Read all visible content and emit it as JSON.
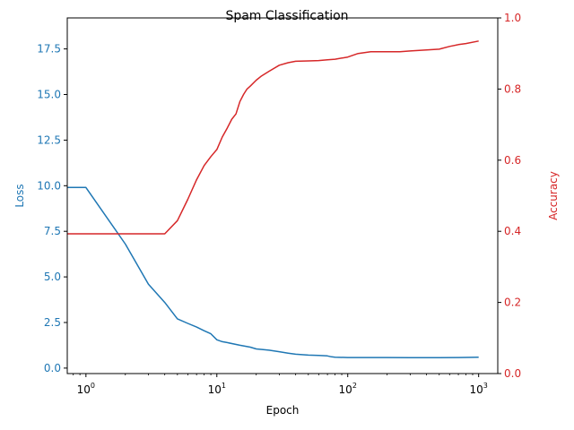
{
  "chart_data": {
    "type": "line",
    "title": "Spam Classification",
    "xlabel": "Epoch",
    "ylabel_left": "Loss",
    "ylabel_right": "Accuracy",
    "x_scale": "log",
    "xlim": [
      0.72,
      1400
    ],
    "x_ticks": [
      1,
      10,
      100,
      1000
    ],
    "x_tick_labels": [
      {
        "base": "10",
        "exp": "0"
      },
      {
        "base": "10",
        "exp": "1"
      },
      {
        "base": "10",
        "exp": "2"
      },
      {
        "base": "10",
        "exp": "3"
      }
    ],
    "ylim_left": [
      -0.3,
      19.2
    ],
    "y_ticks_left": [
      0.0,
      2.5,
      5.0,
      7.5,
      10.0,
      12.5,
      15.0,
      17.5
    ],
    "y_tick_labels_left": [
      "0.0",
      "2.5",
      "5.0",
      "7.5",
      "10.0",
      "12.5",
      "15.0",
      "17.5"
    ],
    "ylim_right": [
      0.0,
      1.0
    ],
    "y_ticks_right": [
      0.0,
      0.2,
      0.4,
      0.6,
      0.8,
      1.0
    ],
    "y_tick_labels_right": [
      "0.0",
      "0.2",
      "0.4",
      "0.6",
      "0.8",
      "1.0"
    ],
    "grid": false,
    "colors": {
      "loss": "#1f77b4",
      "accuracy": "#d62728",
      "axis": "#000000"
    },
    "series": [
      {
        "axis": "left",
        "x": [
          0.72,
          1,
          2,
          3,
          4,
          5,
          6,
          7,
          8,
          9,
          10,
          11,
          12,
          15,
          18,
          20,
          25,
          30,
          35,
          40,
          50,
          60,
          70,
          75,
          80,
          100,
          150,
          200,
          300,
          500,
          700,
          1000
        ],
        "values": [
          9.9,
          9.9,
          6.8,
          4.6,
          3.6,
          2.7,
          2.45,
          2.25,
          2.05,
          1.88,
          1.55,
          1.45,
          1.4,
          1.25,
          1.15,
          1.05,
          0.98,
          0.9,
          0.82,
          0.76,
          0.71,
          0.69,
          0.67,
          0.62,
          0.6,
          0.58,
          0.58,
          0.58,
          0.57,
          0.57,
          0.58,
          0.6
        ]
      },
      {
        "axis": "right",
        "x": [
          0.72,
          1,
          2,
          3,
          4,
          5,
          6,
          7,
          8,
          9,
          10,
          11,
          12,
          13,
          14,
          15,
          16,
          17,
          18,
          20,
          22,
          25,
          30,
          35,
          40,
          50,
          60,
          70,
          80,
          100,
          120,
          150,
          200,
          250,
          300,
          400,
          500,
          600,
          700,
          800,
          1000
        ],
        "values": [
          0.393,
          0.393,
          0.393,
          0.393,
          0.393,
          0.43,
          0.49,
          0.545,
          0.585,
          0.61,
          0.63,
          0.665,
          0.69,
          0.715,
          0.73,
          0.765,
          0.785,
          0.8,
          0.808,
          0.825,
          0.837,
          0.85,
          0.867,
          0.874,
          0.878,
          0.879,
          0.88,
          0.882,
          0.884,
          0.89,
          0.9,
          0.905,
          0.905,
          0.905,
          0.907,
          0.91,
          0.912,
          0.92,
          0.925,
          0.928,
          0.935
        ]
      }
    ]
  }
}
